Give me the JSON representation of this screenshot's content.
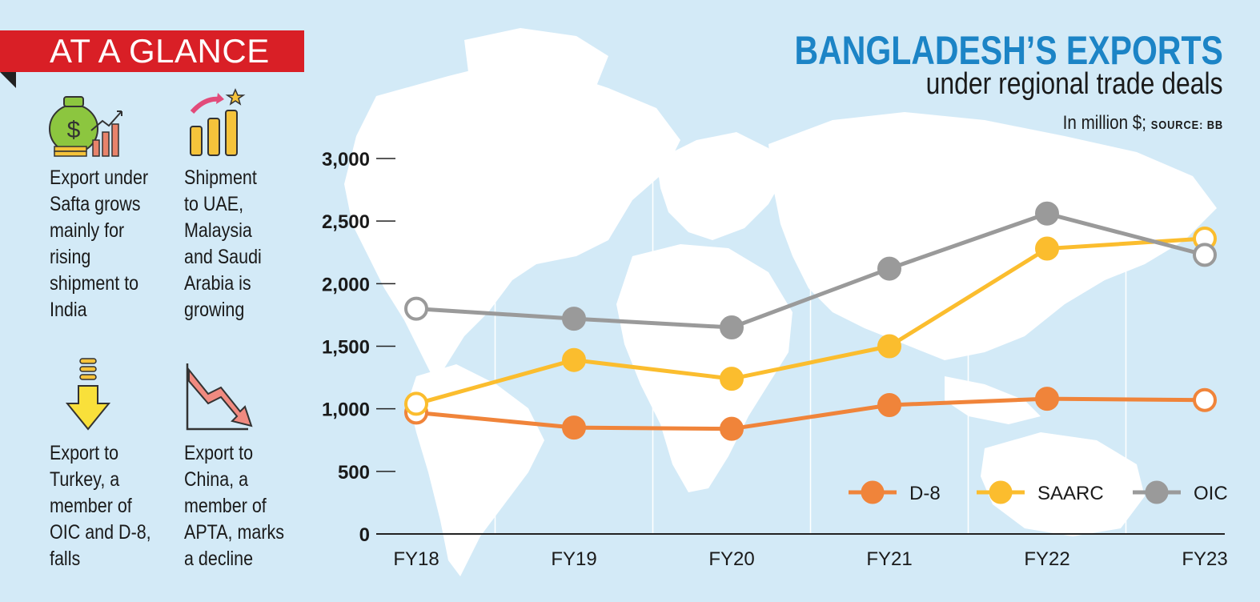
{
  "banner": {
    "label": "AT A GLANCE"
  },
  "notes": [
    {
      "text": "Export under Safta grows mainly for rising shipment to India",
      "icon": "money-bag-growth-icon"
    },
    {
      "text": "Shipment to UAE, Malaysia and Saudi Arabia is growing",
      "icon": "bar-chart-rising-icon"
    },
    {
      "text": "Export to Turkey, a member of OIC and D-8, falls",
      "icon": "down-arrow-icon"
    },
    {
      "text": "Export to China, a member of APTA, marks a decline",
      "icon": "declining-arrow-icon"
    }
  ],
  "header": {
    "title": "BANGLADESH’S EXPORTS",
    "subtitle": "under regional trade deals",
    "unit": "In million $;",
    "source": "SOURCE: BB"
  },
  "colors": {
    "banner": "#d91f26",
    "title": "#1c84c6",
    "background": "#d3eaf7",
    "map": "#ffffff"
  },
  "chart_data": {
    "type": "line",
    "title": "BANGLADESH’S EXPORTS",
    "subtitle": "under regional trade deals",
    "ylabel": "In million $",
    "categories": [
      "FY18",
      "FY19",
      "FY20",
      "FY21",
      "FY22",
      "FY23"
    ],
    "y_ticks": [
      "0",
      "500",
      "1,000",
      "1,500",
      "2,000",
      "2,500",
      "3,000"
    ],
    "ylim": [
      0,
      3000
    ],
    "legend": "bottom-right",
    "grid": "vertical",
    "series": [
      {
        "name": "D-8",
        "color": "#f0843a",
        "values": [
          970,
          850,
          840,
          1030,
          1080,
          1070
        ]
      },
      {
        "name": "SAARC",
        "color": "#fbbd2e",
        "values": [
          1040,
          1390,
          1240,
          1500,
          2280,
          2360
        ]
      },
      {
        "name": "OIC",
        "color": "#9a9a9a",
        "values": [
          1800,
          1720,
          1650,
          2120,
          2560,
          2230
        ]
      }
    ]
  }
}
